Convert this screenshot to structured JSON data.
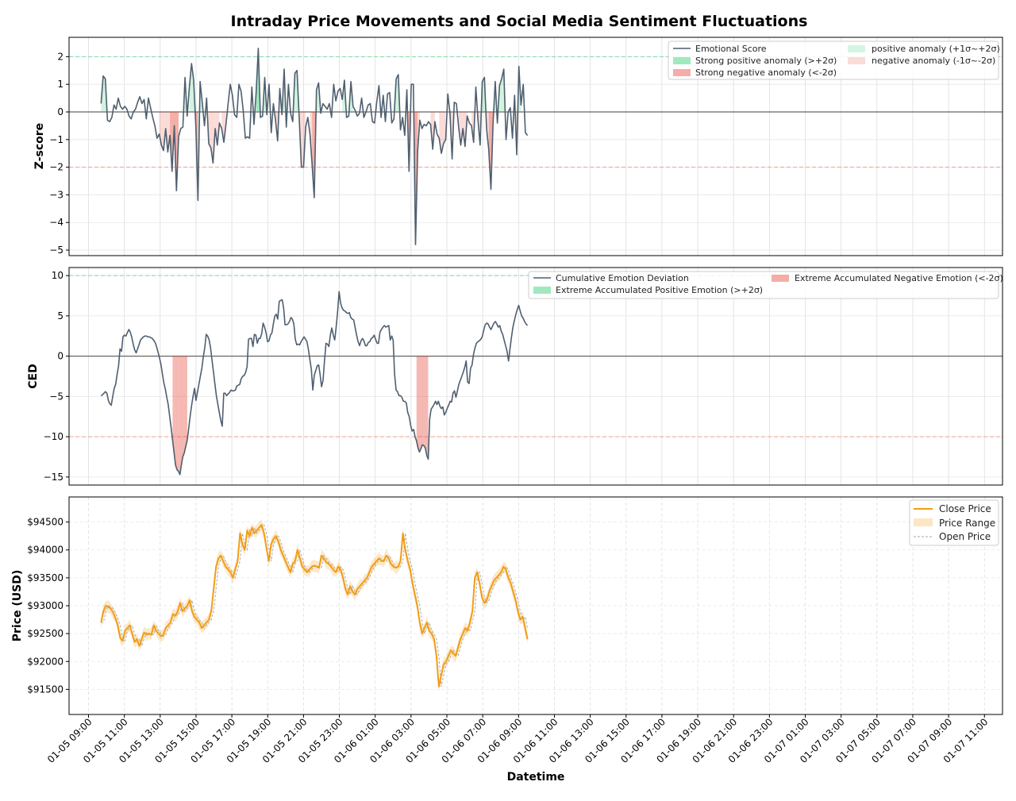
{
  "chart_data": {
    "title": "Intraday Price Movements and Social Media Sentiment Fluctuations",
    "xlabel": "Datetime",
    "x_ticks": [
      "01-05 09:00",
      "01-05 11:00",
      "01-05 13:00",
      "01-05 15:00",
      "01-05 17:00",
      "01-05 19:00",
      "01-05 21:00",
      "01-05 23:00",
      "01-06 01:00",
      "01-06 03:00",
      "01-06 05:00",
      "01-06 07:00",
      "01-06 09:00",
      "01-06 11:00",
      "01-06 13:00",
      "01-06 15:00",
      "01-06 17:00",
      "01-06 19:00",
      "01-06 21:00",
      "01-06 23:00",
      "01-07 01:00",
      "01-07 03:00",
      "01-07 05:00",
      "01-07 07:00",
      "01-07 09:00",
      "01-07 11:00"
    ],
    "x_start_hours": 0.7,
    "x_step_hours": 0.3333,
    "panels": [
      {
        "type": "line",
        "ylabel": "Z-score",
        "ylim": [
          -5.2,
          2.7
        ],
        "yticks": [
          2,
          1,
          0,
          -1,
          -2,
          -3,
          -4,
          -5
        ],
        "ytick_labels": [
          "2",
          "1",
          "0",
          "−1",
          "−2",
          "−3",
          "−4",
          "−5"
        ],
        "thresholds": [
          2,
          -2
        ],
        "legend_position": "top-right",
        "legend": [
          "Emotional Score",
          "Strong positive anomaly (>+2σ)",
          "Strong negative anomaly (<-2σ)",
          "positive anomaly (+1σ~+2σ)",
          "negative anomaly (-1σ~-2σ)"
        ],
        "series": [
          {
            "name": "Emotional Score",
            "values": [
              0.3,
              1.3,
              1.2,
              -0.3,
              -0.35,
              -0.2,
              0.25,
              0.1,
              0.5,
              0.2,
              0.1,
              0.2,
              0.1,
              -0.15,
              -0.25,
              0.0,
              0.1,
              0.35,
              0.55,
              0.3,
              0.45,
              -0.25,
              0.5,
              0.15,
              -0.2,
              -0.5,
              -0.95,
              -0.8,
              -1.2,
              -1.4,
              -0.6,
              -1.45,
              -0.85,
              -2.15,
              -0.5,
              -2.85,
              -0.9,
              -0.6,
              -0.55,
              1.25,
              -0.15,
              0.9,
              1.75,
              1.15,
              -0.5,
              -3.2,
              1.1,
              0.35,
              -0.5,
              0.5,
              -1.15,
              -1.3,
              -1.85,
              -0.6,
              -1.2,
              -0.4,
              -0.6,
              -1.1,
              -0.45,
              0.3,
              1.0,
              0.6,
              -0.1,
              -0.2,
              1.0,
              0.75,
              0.05,
              -0.95,
              -0.9,
              -0.95,
              0.9,
              -0.45,
              0.7,
              2.3,
              -0.2,
              -0.15,
              1.25,
              -0.1,
              1.0,
              -0.75,
              0.3,
              -0.3,
              -1.05,
              0.85,
              -0.1,
              1.55,
              -0.55,
              1.0,
              -0.05,
              -0.35,
              1.4,
              1.5,
              -0.25,
              -2.0,
              -2.0,
              -0.55,
              -0.2,
              -0.8,
              -1.9,
              -3.1,
              0.8,
              1.05,
              -0.05,
              0.3,
              0.2,
              0.1,
              0.3,
              -0.2,
              1.0,
              0.4,
              0.75,
              0.85,
              0.45,
              1.15,
              -0.2,
              -0.15,
              1.1,
              0.2,
              0.05,
              -0.15,
              -0.05,
              0.5,
              -0.2,
              0.0,
              0.25,
              0.3,
              -0.35,
              -0.4,
              0.35,
              0.95,
              -0.2,
              0.6,
              -0.35,
              0.65,
              0.7,
              -0.4,
              -0.25,
              1.2,
              1.35,
              -0.65,
              -0.2,
              -0.85,
              0.8,
              -2.15,
              1.0,
              1.0,
              -4.8,
              -1.4,
              -0.3,
              -0.6,
              -0.45,
              -0.5,
              -0.35,
              -0.45,
              -1.35,
              -0.35,
              -0.8,
              -0.95,
              -1.5,
              -1.15,
              -1.0,
              0.65,
              -0.05,
              -1.7,
              0.35,
              0.3,
              -0.55,
              -1.2,
              -0.6,
              -1.25,
              -0.15,
              -0.4,
              -0.5,
              -1.1,
              0.9,
              -0.3,
              -1.2,
              1.1,
              1.25,
              -0.6,
              -1.35,
              -2.8,
              -0.4,
              1.1,
              -0.4,
              0.95,
              1.2,
              1.55,
              -1.0,
              0.0,
              0.15,
              -0.95,
              0.6,
              -1.55,
              1.65,
              0.25,
              1.0,
              -0.75,
              -0.85
            ]
          }
        ]
      },
      {
        "type": "line",
        "ylabel": "CED",
        "ylim": [
          -16,
          11
        ],
        "yticks": [
          10,
          5,
          0,
          -5,
          -10,
          -15
        ],
        "ytick_labels": [
          "10",
          "5",
          "0",
          "−5",
          "−10",
          "−15"
        ],
        "thresholds": [
          10,
          -10
        ],
        "legend_position": "top-right",
        "legend": [
          "Cumulative Emotion Deviation",
          "Extreme Accumulated Positive Emotion (>+2σ)",
          "Extreme Accumulated Negative Emotion (<-2σ)"
        ],
        "series": [
          {
            "name": "Cumulative Emotion Deviation",
            "values": [
              -4.9,
              -4.8,
              -4.6,
              -4.4,
              -4.6,
              -5.5,
              -5.9,
              -6.1,
              -5.0,
              -4.0,
              -3.5,
              -2.3,
              -1.2,
              0.9,
              0.6,
              2.4,
              2.6,
              2.5,
              2.9,
              3.3,
              3.0,
              2.4,
              1.5,
              0.8,
              0.4,
              0.9,
              1.4,
              2.0,
              2.2,
              2.4,
              2.5,
              2.5,
              2.4,
              2.4,
              2.3,
              2.2,
              2.0,
              1.7,
              1.2,
              0.5,
              -0.2,
              -1.0,
              -2.2,
              -3.3,
              -4.1,
              -5.1,
              -6.0,
              -7.5,
              -8.9,
              -10.5,
              -12.0,
              -13.5,
              -14.1,
              -14.3,
              -14.7,
              -13.5,
              -12.5,
              -12.0,
              -11.2,
              -10.4,
              -9.0,
              -7.5,
              -6.1,
              -5.0,
              -4.0,
              -5.5,
              -4.5,
              -3.5,
              -2.5,
              -1.5,
              -0.1,
              1.0,
              2.7,
              2.5,
              2.0,
              1.0,
              -0.5,
              -2.0,
              -3.5,
              -5.0,
              -6.0,
              -7.0,
              -8.0,
              -8.7,
              -4.6,
              -4.6,
              -4.9,
              -4.7,
              -4.5,
              -4.2,
              -4.3,
              -4.3,
              -4.2,
              -3.7,
              -3.6,
              -3.5,
              -2.8,
              -2.5,
              -2.4,
              -2.0,
              -1.3,
              2.1,
              2.2,
              2.2,
              1.2,
              2.7,
              2.6,
              1.6,
              2.2,
              2.2,
              2.8,
              4.1,
              3.6,
              2.9,
              1.8,
              1.9,
              2.6,
              2.9,
              4.0,
              5.0,
              5.2,
              4.6,
              6.8,
              6.9,
              7.0,
              6.0,
              3.9,
              3.9,
              4.0,
              4.3,
              4.8,
              4.6,
              4.0,
              2.1,
              1.4,
              1.5,
              1.4,
              1.8,
              2.1,
              2.4,
              2.1,
              1.8,
              0.8,
              -0.4,
              -1.7,
              -4.2,
              -2.4,
              -1.8,
              -1.2,
              -1.1,
              -2.3,
              -3.8,
              -3.0,
              -0.6,
              1.6,
              1.5,
              1.2,
              2.6,
              3.5,
              2.6,
              2.0,
              3.6,
              5.6,
              8.0,
              6.6,
              6.0,
              5.7,
              5.6,
              5.4,
              5.3,
              5.4,
              4.8,
              4.6,
              4.5,
              3.5,
              2.6,
              1.8,
              1.3,
              1.9,
              2.2,
              1.9,
              1.3,
              1.3,
              1.7,
              1.8,
              2.2,
              2.3,
              2.6,
              2.1,
              1.6,
              1.6,
              3.0,
              3.3,
              3.6,
              3.8,
              3.6,
              3.7,
              3.8,
              2.0,
              2.5,
              2.0,
              -2.2,
              -4.2,
              -4.4,
              -4.9,
              -4.9,
              -5.1,
              -5.6,
              -5.6,
              -5.8,
              -7.0,
              -7.5,
              -8.6,
              -9.3,
              -9.1,
              -10.0,
              -10.5,
              -11.4,
              -11.9,
              -11.5,
              -11.0,
              -11.1,
              -11.4,
              -12.3,
              -12.8,
              -7.8,
              -6.6,
              -6.3,
              -6.0,
              -5.6,
              -6.0,
              -5.6,
              -6.2,
              -6.5,
              -6.3,
              -7.3,
              -7.0,
              -6.5,
              -6.1,
              -5.6,
              -5.7,
              -4.6,
              -4.3,
              -5.1,
              -4.3,
              -3.5,
              -3.0,
              -2.5,
              -2.0,
              -1.4,
              -0.6,
              -3.2,
              -3.4,
              -1.5,
              -1.1,
              0.2,
              1.0,
              1.6,
              1.8,
              1.9,
              2.1,
              2.4,
              3.2,
              3.9,
              4.1,
              4.0,
              3.6,
              3.3,
              3.7,
              4.1,
              4.3,
              4.0,
              3.6,
              3.8,
              3.1,
              2.7,
              2.0,
              1.3,
              0.6,
              -0.6,
              0.9,
              2.3,
              3.6,
              4.4,
              5.2,
              5.8,
              6.3,
              5.6,
              5.0,
              4.7,
              4.3,
              4.0,
              3.8
            ]
          }
        ]
      },
      {
        "type": "line",
        "ylabel": "Price (USD)",
        "ylim": [
          91050,
          94950
        ],
        "yticks": [
          94500,
          94000,
          93500,
          93000,
          92500,
          92000,
          91500
        ],
        "ytick_labels": [
          "$94500",
          "$94000",
          "$93500",
          "$93000",
          "$92500",
          "$92000",
          "$91500"
        ],
        "legend_position": "top-right",
        "legend": [
          "Close Price",
          "Price Range",
          "Open Price"
        ],
        "series": [
          {
            "name": "Close Price",
            "values": [
              92700,
              92900,
              93000,
              92980,
              92950,
              92880,
              92780,
              92650,
              92420,
              92370,
              92550,
              92600,
              92650,
              92500,
              92350,
              92400,
              92280,
              92400,
              92520,
              92480,
              92500,
              92480,
              92650,
              92550,
              92500,
              92450,
              92480,
              92600,
              92650,
              92700,
              92850,
              92820,
              92900,
              93050,
              92900,
              92950,
              93000,
              93100,
              92900,
              92800,
              92750,
              92700,
              92600,
              92650,
              92700,
              92750,
              92900,
              93300,
              93700,
              93850,
              93900,
              93800,
              93700,
              93650,
              93600,
              93500,
              93650,
              93800,
              94300,
              94100,
              94000,
              94350,
              94250,
              94400,
              94300,
              94350,
              94400,
              94450,
              94300,
              94050,
              93800,
              94100,
              94200,
              94250,
              94150,
              94000,
              93900,
              93800,
              93700,
              93600,
              93750,
              93800,
              94000,
              93850,
              93700,
              93650,
              93600,
              93650,
              93700,
              93720,
              93700,
              93680,
              93900,
              93850,
              93780,
              93750,
              93700,
              93640,
              93600,
              93700,
              93650,
              93500,
              93300,
              93200,
              93350,
              93250,
              93200,
              93300,
              93350,
              93400,
              93450,
              93500,
              93600,
              93700,
              93750,
              93800,
              93850,
              93800,
              93800,
              93900,
              93850,
              93750,
              93700,
              93680,
              93700,
              93800,
              94300,
              94000,
              93800,
              93650,
              93400,
              93200,
              93000,
              92700,
              92500,
              92600,
              92700,
              92550,
              92500,
              92400,
              92100,
              91550,
              91750,
              91950,
              92000,
              92100,
              92200,
              92150,
              92100,
              92250,
              92400,
              92500,
              92600,
              92550,
              92700,
              92900,
              93500,
              93600,
              93400,
              93150,
              93050,
              93100,
              93250,
              93350,
              93450,
              93500,
              93550,
              93600,
              93700,
              93650,
              93500,
              93400,
              93250,
              93100,
              92900,
              92750,
              92800,
              92600,
              92400
            ]
          }
        ],
        "range_band_width": 120
      }
    ]
  }
}
